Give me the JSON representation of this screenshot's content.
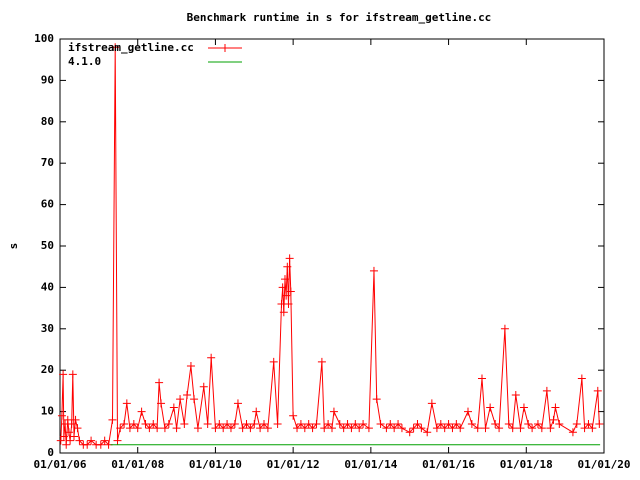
{
  "chart_data": {
    "type": "line",
    "title": "Benchmark runtime in s for ifstream_getline.cc",
    "y_label": "s",
    "xlim": [
      2006,
      2020
    ],
    "xticks": [
      {
        "value": 2006,
        "label": "01/01/06"
      },
      {
        "value": 2008,
        "label": "01/01/08"
      },
      {
        "value": 2010,
        "label": "01/01/10"
      },
      {
        "value": 2012,
        "label": "01/01/12"
      },
      {
        "value": 2014,
        "label": "01/01/14"
      },
      {
        "value": 2016,
        "label": "01/01/16"
      },
      {
        "value": 2018,
        "label": "01/01/18"
      },
      {
        "value": 2020,
        "label": "01/01/20"
      }
    ],
    "ylim": [
      0,
      100
    ],
    "yticks": [
      0,
      10,
      20,
      30,
      40,
      50,
      60,
      70,
      80,
      90,
      100
    ],
    "legend": "top left",
    "series": [
      {
        "name": "ifstream_getline.cc",
        "color": "#ff0000",
        "marker": "plus",
        "x": [
          2006.02,
          2006.05,
          2006.08,
          2006.1,
          2006.13,
          2006.16,
          2006.2,
          2006.23,
          2006.26,
          2006.3,
          2006.33,
          2006.36,
          2006.4,
          2006.45,
          2006.5,
          2006.6,
          2006.7,
          2006.8,
          2006.93,
          2007.05,
          2007.15,
          2007.25,
          2007.35,
          2007.42,
          2007.48,
          2007.55,
          2007.65,
          2007.72,
          2007.8,
          2007.9,
          2008.0,
          2008.1,
          2008.2,
          2008.3,
          2008.4,
          2008.5,
          2008.55,
          2008.6,
          2008.7,
          2008.8,
          2008.93,
          2009.0,
          2009.09,
          2009.2,
          2009.27,
          2009.37,
          2009.45,
          2009.55,
          2009.7,
          2009.8,
          2009.89,
          2010.0,
          2010.1,
          2010.2,
          2010.3,
          2010.4,
          2010.5,
          2010.58,
          2010.7,
          2010.8,
          2010.9,
          2011.0,
          2011.05,
          2011.15,
          2011.25,
          2011.35,
          2011.5,
          2011.6,
          2011.7,
          2011.73,
          2011.76,
          2011.79,
          2011.82,
          2011.85,
          2011.88,
          2011.91,
          2011.94,
          2012.0,
          2012.1,
          2012.2,
          2012.3,
          2012.4,
          2012.5,
          2012.6,
          2012.74,
          2012.8,
          2012.9,
          2013.0,
          2013.05,
          2013.2,
          2013.3,
          2013.4,
          2013.5,
          2013.6,
          2013.7,
          2013.8,
          2013.95,
          2014.08,
          2014.15,
          2014.25,
          2014.4,
          2014.5,
          2014.6,
          2014.7,
          2014.8,
          2015.0,
          2015.1,
          2015.2,
          2015.3,
          2015.45,
          2015.57,
          2015.7,
          2015.8,
          2015.9,
          2016.0,
          2016.1,
          2016.2,
          2016.3,
          2016.5,
          2016.6,
          2016.75,
          2016.86,
          2016.95,
          2017.07,
          2017.2,
          2017.3,
          2017.45,
          2017.55,
          2017.65,
          2017.73,
          2017.85,
          2017.94,
          2018.05,
          2018.15,
          2018.3,
          2018.4,
          2018.53,
          2018.62,
          2018.7,
          2018.75,
          2018.85,
          2019.2,
          2019.3,
          2019.43,
          2019.5,
          2019.6,
          2019.7,
          2019.84,
          2019.88
        ],
        "values": [
          3,
          9,
          19,
          4,
          7,
          2,
          8,
          5,
          3,
          7,
          19,
          4,
          8,
          6,
          3,
          2,
          2,
          3,
          2,
          2,
          3,
          2,
          8,
          98,
          3,
          6,
          7,
          12,
          6,
          7,
          6,
          10,
          7,
          6,
          7,
          6,
          17,
          12,
          6,
          7,
          11,
          6,
          13,
          7,
          14,
          21,
          13,
          6,
          16,
          7,
          23,
          6,
          7,
          6,
          7,
          6,
          7,
          12,
          6,
          7,
          6,
          7,
          10,
          6,
          7,
          6,
          22,
          7,
          36,
          40,
          34,
          42,
          38,
          45,
          36,
          47,
          39,
          9,
          6,
          7,
          6,
          7,
          6,
          7,
          22,
          6,
          7,
          6,
          10,
          7,
          6,
          7,
          6,
          7,
          6,
          7,
          6,
          44,
          13,
          7,
          6,
          7,
          6,
          7,
          6,
          5,
          6,
          7,
          6,
          5,
          12,
          6,
          7,
          6,
          7,
          6,
          7,
          6,
          10,
          7,
          6,
          18,
          6,
          11,
          7,
          6,
          30,
          7,
          6,
          14,
          6,
          11,
          7,
          6,
          7,
          6,
          15,
          6,
          8,
          11,
          7,
          5,
          7,
          18,
          6,
          7,
          6,
          15,
          7
        ]
      },
      {
        "name": "4.1.0",
        "color": "#00a000",
        "marker": "none",
        "x": [
          2007.3,
          2019.9
        ],
        "values": [
          2,
          2
        ]
      }
    ]
  }
}
